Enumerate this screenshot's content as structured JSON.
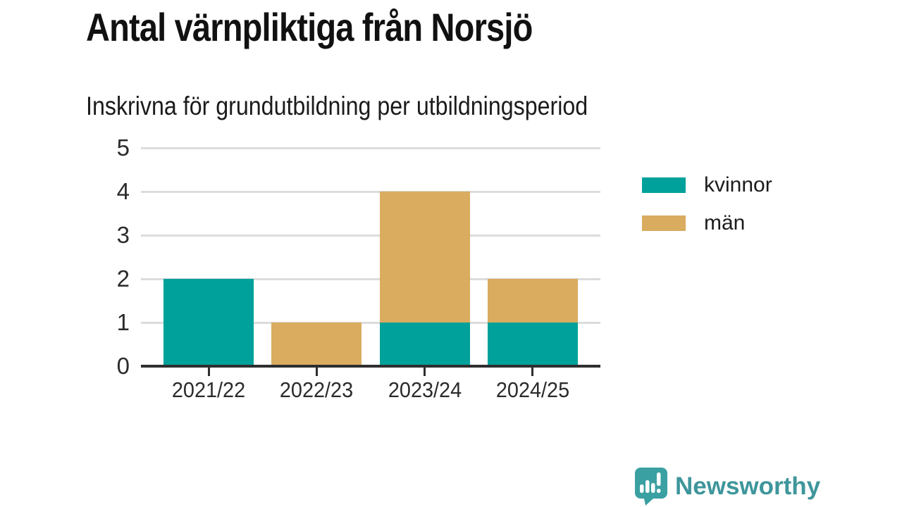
{
  "page": {
    "title": "Antal värnpliktiga från Norsjö",
    "subtitle": "Inskrivna för grundutbildning per utbildningsperiod"
  },
  "chart_data": {
    "type": "bar",
    "stacked": true,
    "title": "Antal värnpliktiga från Norsjö",
    "subtitle": "Inskrivna för grundutbildning per utbildningsperiod",
    "categories": [
      "2021/22",
      "2022/23",
      "2023/24",
      "2024/25"
    ],
    "series": [
      {
        "name": "kvinnor",
        "color": "#00a19a",
        "values": [
          2,
          0,
          1,
          1
        ]
      },
      {
        "name": "män",
        "color": "#d9ac5f",
        "values": [
          0,
          1,
          3,
          1
        ]
      }
    ],
    "xlabel": "",
    "ylabel": "",
    "ylim": [
      0,
      5
    ],
    "yticks": [
      0,
      1,
      2,
      3,
      4,
      5
    ],
    "grid": true,
    "gridline_color": "#dcdcdc",
    "axis_color": "#2e2e2e",
    "legend_position": "right"
  },
  "branding": {
    "logo_text": "Newsworthy",
    "logo_color": "#3e969b",
    "logo_icon": "speech-bubble-bar-chart-icon"
  }
}
